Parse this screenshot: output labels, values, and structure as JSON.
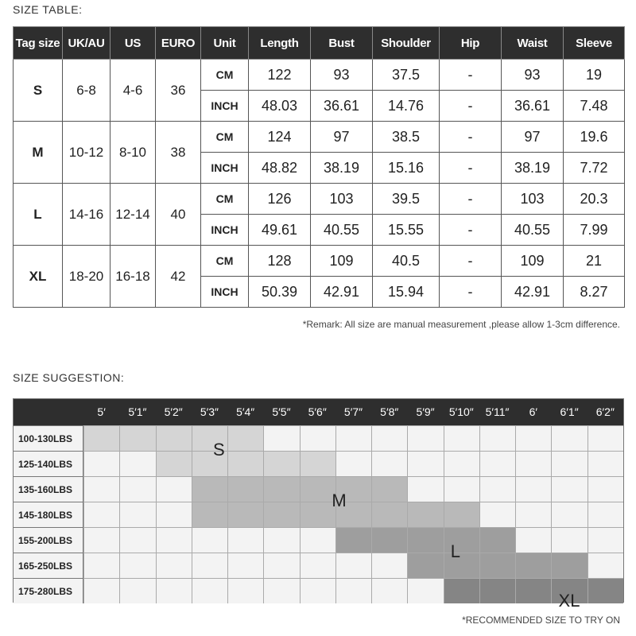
{
  "size_table": {
    "title": "SIZE TABLE:",
    "headers": [
      "Tag size",
      "UK/AU",
      "US",
      "EURO",
      "Unit",
      "Length",
      "Bust",
      "Shoulder",
      "Hip",
      "Waist",
      "Sleeve"
    ],
    "rows": [
      {
        "tag": "S",
        "ukau": "6-8",
        "us": "4-6",
        "euro": "36",
        "cm": [
          "122",
          "93",
          "37.5",
          "-",
          "93",
          "19"
        ],
        "inch": [
          "48.03",
          "36.61",
          "14.76",
          "-",
          "36.61",
          "7.48"
        ]
      },
      {
        "tag": "M",
        "ukau": "10-12",
        "us": "8-10",
        "euro": "38",
        "cm": [
          "124",
          "97",
          "38.5",
          "-",
          "97",
          "19.6"
        ],
        "inch": [
          "48.82",
          "38.19",
          "15.16",
          "-",
          "38.19",
          "7.72"
        ]
      },
      {
        "tag": "L",
        "ukau": "14-16",
        "us": "12-14",
        "euro": "40",
        "cm": [
          "126",
          "103",
          "39.5",
          "-",
          "103",
          "20.3"
        ],
        "inch": [
          "49.61",
          "40.55",
          "15.55",
          "-",
          "40.55",
          "7.99"
        ]
      },
      {
        "tag": "XL",
        "ukau": "18-20",
        "us": "16-18",
        "euro": "42",
        "cm": [
          "128",
          "109",
          "40.5",
          "-",
          "109",
          "21"
        ],
        "inch": [
          "50.39",
          "42.91",
          "15.94",
          "-",
          "42.91",
          "8.27"
        ]
      }
    ],
    "unit_cm": "CM",
    "unit_inch": "INCH",
    "remark": "*Remark: All size are manual measurement ,please allow 1-3cm difference."
  },
  "size_suggestion": {
    "title": "SIZE SUGGESTION:",
    "heights": [
      "5′",
      "5′1″",
      "5′2″",
      "5′3″",
      "5′4″",
      "5′5″",
      "5′6″",
      "5′7″",
      "5′8″",
      "5′9″",
      "5′10″",
      "5′11″",
      "6′",
      "6′1″",
      "6′2″"
    ],
    "weights": [
      "100-130LBS",
      "125-140LBS",
      "135-160LBS",
      "145-180LBS",
      "155-200LBS",
      "165-250LBS",
      "175-280LBS"
    ],
    "recommendations": [
      {
        "size": "S",
        "color": "#d5d5d5",
        "cells": [
          [
            0,
            0
          ],
          [
            0,
            1
          ],
          [
            0,
            2
          ],
          [
            0,
            3
          ],
          [
            0,
            4
          ],
          [
            1,
            2
          ],
          [
            1,
            3
          ],
          [
            1,
            4
          ],
          [
            1,
            5
          ],
          [
            1,
            6
          ]
        ]
      },
      {
        "size": "M",
        "color": "#b9b9b9",
        "cells": [
          [
            2,
            3
          ],
          [
            2,
            4
          ],
          [
            2,
            5
          ],
          [
            2,
            6
          ],
          [
            2,
            7
          ],
          [
            2,
            8
          ],
          [
            3,
            3
          ],
          [
            3,
            4
          ],
          [
            3,
            5
          ],
          [
            3,
            6
          ],
          [
            3,
            7
          ],
          [
            3,
            8
          ],
          [
            3,
            9
          ],
          [
            3,
            10
          ]
        ]
      },
      {
        "size": "L",
        "color": "#9e9e9e",
        "cells": [
          [
            4,
            7
          ],
          [
            4,
            8
          ],
          [
            4,
            9
          ],
          [
            4,
            10
          ],
          [
            4,
            11
          ],
          [
            5,
            9
          ],
          [
            5,
            10
          ],
          [
            5,
            11
          ],
          [
            5,
            12
          ],
          [
            5,
            13
          ]
        ]
      },
      {
        "size": "XL",
        "color": "#858585",
        "cells": [
          [
            6,
            10
          ],
          [
            6,
            11
          ],
          [
            6,
            12
          ],
          [
            6,
            13
          ],
          [
            6,
            14
          ]
        ]
      }
    ],
    "empty_cell_color": "#f3f3f3",
    "remark": "*RECOMMENDED SIZE TO TRY ON"
  }
}
